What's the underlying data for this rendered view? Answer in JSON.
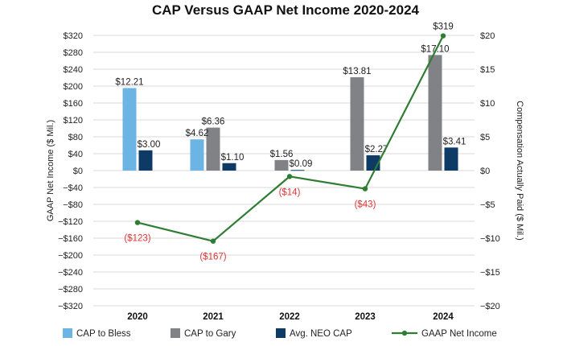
{
  "chart_data": {
    "type": "bar",
    "title": "CAP Versus GAAP Net Income 2020-2024",
    "categories": [
      "2020",
      "2021",
      "2022",
      "2023",
      "2024"
    ],
    "ylabel_left": "GAAP Net Income ($ Mil.)",
    "ylabel_right": "Compensation Actually Paid ($ Mil.)",
    "left_axis": {
      "ylim": [
        -320,
        320
      ],
      "ticks": [
        320,
        280,
        240,
        200,
        160,
        120,
        80,
        40,
        0,
        -40,
        -80,
        -120,
        -160,
        -200,
        -240,
        -280,
        -320
      ],
      "tick_labels": [
        "$320",
        "$280",
        "$240",
        "$200",
        "$160",
        "$120",
        "$80",
        "$40",
        "$0",
        "−$40",
        "−$80",
        "−$120",
        "−$160",
        "−$200",
        "−$240",
        "−$280",
        "−$320"
      ]
    },
    "right_axis": {
      "ylim": [
        -20,
        20
      ],
      "ticks": [
        20,
        15,
        10,
        5,
        0,
        -5,
        -10,
        -15,
        -20
      ],
      "tick_labels": [
        "$20",
        "$15",
        "$10",
        "$5",
        "$0",
        "−$5",
        "−$10",
        "−$15",
        "−$20"
      ]
    },
    "series": [
      {
        "name": "CAP to Bless",
        "type": "bar",
        "axis": "right",
        "color": "#6cb4e4",
        "values": [
          12.21,
          4.62,
          null,
          null,
          null
        ],
        "labels": [
          "$12.21",
          "$4.62",
          "",
          "",
          ""
        ]
      },
      {
        "name": "CAP to Gary",
        "type": "bar",
        "axis": "right",
        "color": "#808285",
        "values": [
          null,
          6.36,
          1.56,
          13.81,
          17.1
        ],
        "labels": [
          "",
          "$6.36",
          "$1.56",
          "$13.81",
          "$17.10"
        ]
      },
      {
        "name": "Avg. NEO CAP",
        "type": "bar",
        "axis": "right",
        "color": "#0d3b66",
        "values": [
          3.0,
          1.1,
          0.09,
          2.27,
          3.41
        ],
        "labels": [
          "$3.00",
          "$1.10",
          "$0.09",
          "$2.27",
          "$3.41"
        ]
      },
      {
        "name": "GAAP Net Income",
        "type": "line",
        "axis": "left",
        "color": "#2e7d32",
        "values": [
          -123,
          -167,
          -14,
          -43,
          319
        ],
        "labels": [
          "($123)",
          "($167)",
          "($14)",
          "($43)",
          "$319"
        ]
      }
    ]
  }
}
